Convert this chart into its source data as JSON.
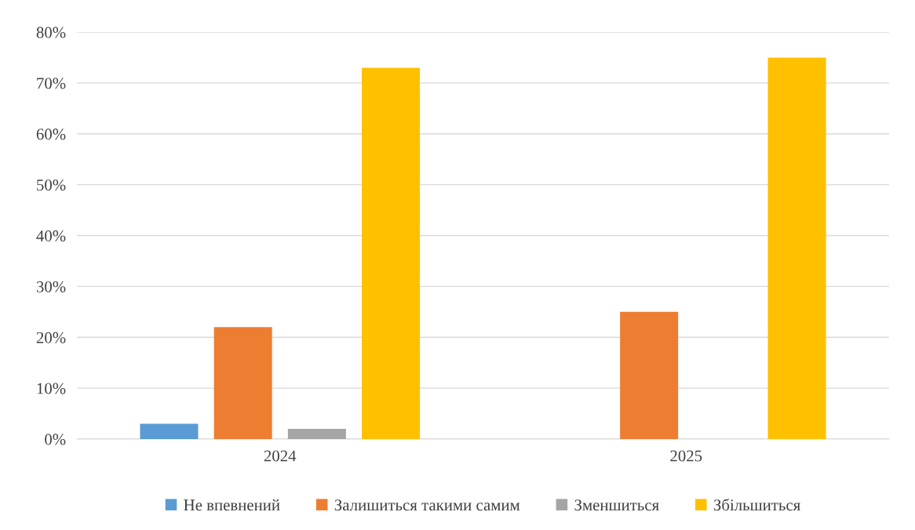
{
  "chart_data": {
    "type": "bar",
    "categories": [
      "2024",
      "2025"
    ],
    "series": [
      {
        "name": "Не впевнений",
        "color": "#5b9bd5",
        "values": [
          3,
          0
        ]
      },
      {
        "name": "Залишиться такими самим",
        "color": "#ed7d31",
        "values": [
          22,
          25
        ]
      },
      {
        "name": "Зменшиться",
        "color": "#a5a5a5",
        "values": [
          2,
          0
        ]
      },
      {
        "name": "Збільшиться",
        "color": "#ffc000",
        "values": [
          73,
          75
        ]
      }
    ],
    "ylim": [
      0,
      80
    ],
    "yticks": [
      {
        "value": 0,
        "label": "0%"
      },
      {
        "value": 10,
        "label": "10%"
      },
      {
        "value": 20,
        "label": "20%"
      },
      {
        "value": 30,
        "label": "30%"
      },
      {
        "value": 40,
        "label": "40%"
      },
      {
        "value": 50,
        "label": "50%"
      },
      {
        "value": 60,
        "label": "60%"
      },
      {
        "value": 70,
        "label": "70%"
      },
      {
        "value": 80,
        "label": "80%"
      }
    ],
    "grid": "y",
    "legend": "bottom"
  }
}
